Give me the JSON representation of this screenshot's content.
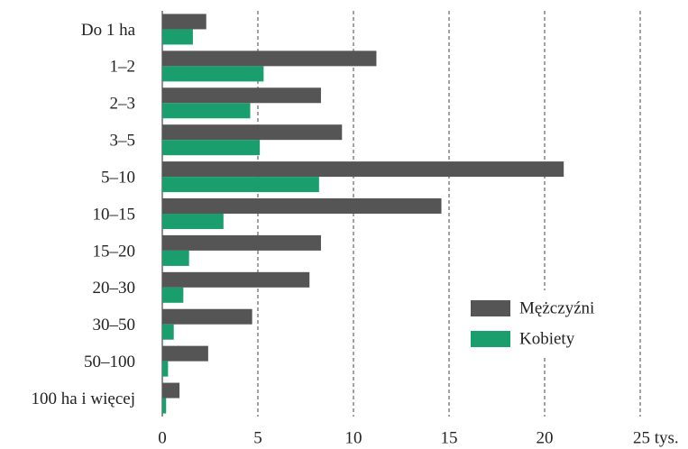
{
  "chart_data": {
    "type": "bar",
    "orientation": "horizontal",
    "categories": [
      "Do 1 ha",
      "1–2",
      "2–3",
      "3–5",
      "5–10",
      "10–15",
      "15–20",
      "20–30",
      "30–50",
      "50–100",
      "100 ha i więcej"
    ],
    "series": [
      {
        "name": "Mężczyźni",
        "color": "#555555",
        "values": [
          2.3,
          11.2,
          8.3,
          9.4,
          21.0,
          14.6,
          8.3,
          7.7,
          4.7,
          2.4,
          0.9
        ]
      },
      {
        "name": "Kobiety",
        "color": "#1a9e6e",
        "values": [
          1.6,
          5.3,
          4.6,
          5.1,
          8.2,
          3.2,
          1.4,
          1.1,
          0.6,
          0.3,
          0.2
        ]
      }
    ],
    "xlim": [
      0,
      25
    ],
    "xticks": [
      0,
      5,
      10,
      15,
      20,
      {
        "value": 25,
        "label": "25 tys."
      }
    ],
    "grid": true,
    "legend": "lower right"
  }
}
